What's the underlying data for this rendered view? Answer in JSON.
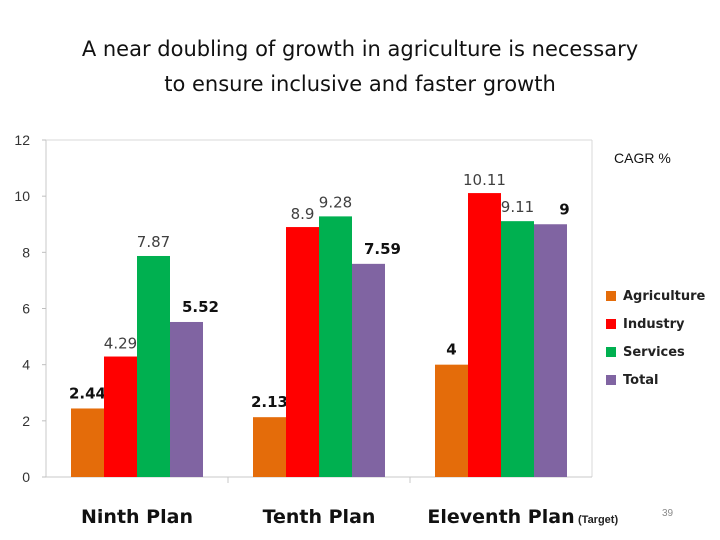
{
  "slide": {
    "title_line1": "A near doubling of growth in agriculture is necessary",
    "title_line2": "to ensure inclusive and faster growth",
    "unit_label": "CAGR %",
    "target_note": "(Target)",
    "slide_number": "39"
  },
  "colors": {
    "Agriculture": "#E46C0A",
    "Industry": "#FF0000",
    "Services": "#00B050",
    "Total": "#8064A2"
  },
  "chart_data": {
    "type": "bar",
    "title": "A near doubling of growth in agriculture is necessary to ensure inclusive and faster growth",
    "ylabel": "CAGR %",
    "xlabel": "",
    "ylim": [
      0,
      12
    ],
    "yticks": [
      0,
      2,
      4,
      6,
      8,
      10,
      12
    ],
    "grid": false,
    "legend_position": "right",
    "categories": [
      "Ninth Plan",
      "Tenth Plan",
      "Eleventh Plan"
    ],
    "series": [
      {
        "name": "Agriculture",
        "values": [
          2.44,
          2.13,
          4
        ],
        "labels": [
          "2.44",
          "2.13",
          "4"
        ]
      },
      {
        "name": "Industry",
        "values": [
          4.29,
          8.9,
          10.11
        ],
        "labels": [
          "4.29",
          "8.9",
          "10.11"
        ]
      },
      {
        "name": "Services",
        "values": [
          7.87,
          9.28,
          9.11
        ],
        "labels": [
          "7.87",
          "9.28",
          "9.11"
        ]
      },
      {
        "name": "Total",
        "values": [
          5.52,
          7.59,
          9
        ],
        "labels": [
          "5.52",
          "7.59",
          "9"
        ]
      }
    ]
  }
}
